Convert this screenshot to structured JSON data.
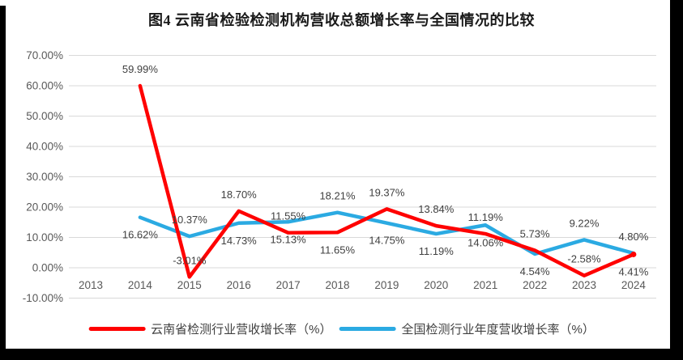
{
  "title": "图4 云南省检验检测机构营收总额增长率与全国情况的比较",
  "frame_color": "#000000",
  "chart_data": {
    "type": "line",
    "title": "图4 云南省检验检测机构营收总额增长率与全国情况的比较",
    "categories": [
      "2013",
      "2014",
      "2015",
      "2016",
      "2017",
      "2018",
      "2019",
      "2020",
      "2021",
      "2022",
      "2023",
      "2024"
    ],
    "y_axis": {
      "ticks": [
        "70.00%",
        "60.00%",
        "50.00%",
        "40.00%",
        "30.00%",
        "20.00%",
        "10.00%",
        "0.00%",
        "-10.00%"
      ],
      "tick_values": [
        70,
        60,
        50,
        40,
        30,
        20,
        10,
        0,
        -10
      ],
      "min": -10,
      "max": 70,
      "step": 10,
      "unit": "%"
    },
    "grid": true,
    "gridline_color": "#d9d9d9",
    "axis_text_color": "#595959",
    "label_text_color": "#404040",
    "legend_position": "bottom",
    "series": [
      {
        "name": "云南省检测行业营收增长率（%）",
        "color": "#ff0000",
        "values": [
          null,
          59.99,
          -3.01,
          18.7,
          11.55,
          11.65,
          19.37,
          13.84,
          11.19,
          5.73,
          -2.58,
          4.41
        ],
        "labels": [
          null,
          "59.99%",
          "-3.01%",
          "18.70%",
          "11.55%",
          "11.65%",
          "19.37%",
          "13.84%",
          "11.19%",
          "5.73%",
          "-2.58%",
          "4.41%"
        ],
        "label_pos": [
          null,
          "above",
          "above",
          "above",
          "above",
          "below",
          "above",
          "above",
          "above",
          "above",
          "above",
          "below"
        ],
        "end_marker": true
      },
      {
        "name": "全国检测行业年度营收增长率（%）",
        "color": "#2baae2",
        "values": [
          null,
          16.62,
          10.37,
          14.73,
          15.13,
          18.21,
          14.75,
          11.19,
          14.06,
          4.54,
          9.22,
          4.8
        ],
        "labels": [
          null,
          "16.62%",
          "10.37%",
          "14.73%",
          "15.13%",
          "18.21%",
          "14.75%",
          "11.19%",
          "14.06%",
          "4.54%",
          "9.22%",
          "4.80%"
        ],
        "label_pos": [
          null,
          "below",
          "above",
          "below",
          "below",
          "above",
          "below",
          "below",
          "below",
          "below",
          "above",
          "above"
        ],
        "end_marker": false
      }
    ]
  }
}
